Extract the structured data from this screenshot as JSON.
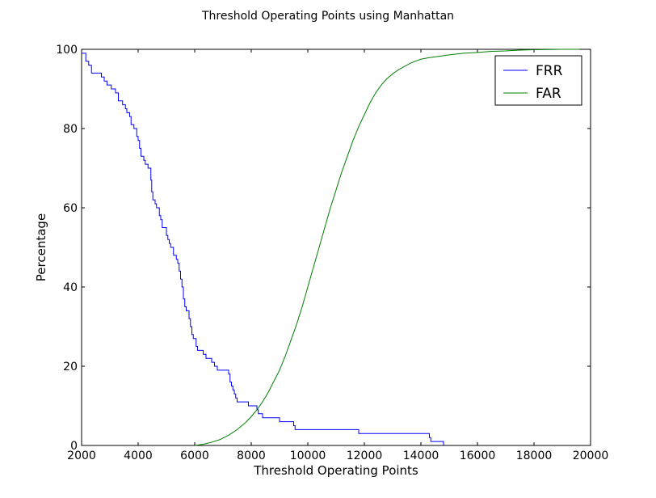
{
  "chart_data": {
    "type": "line",
    "title": "Threshold Operating Points using Manhattan",
    "xlabel": "Threshold Operating Points",
    "ylabel": "Percentage",
    "xlim": [
      2000,
      20000
    ],
    "ylim": [
      0,
      100
    ],
    "xticks": [
      2000,
      4000,
      6000,
      8000,
      10000,
      12000,
      14000,
      16000,
      18000,
      20000
    ],
    "yticks": [
      0,
      20,
      40,
      60,
      80,
      100
    ],
    "grid": false,
    "legend": "top-right",
    "series": [
      {
        "name": "FRR",
        "color": "#0000ff",
        "step": true,
        "x": [
          2000,
          2150,
          2250,
          2350,
          2700,
          2800,
          2900,
          3050,
          3200,
          3300,
          3450,
          3550,
          3600,
          3700,
          3750,
          3850,
          3950,
          4000,
          4050,
          4100,
          4200,
          4250,
          4350,
          4450,
          4480,
          4520,
          4600,
          4650,
          4750,
          4800,
          4850,
          5000,
          5050,
          5100,
          5150,
          5250,
          5350,
          5400,
          5450,
          5500,
          5550,
          5600,
          5650,
          5700,
          5800,
          5850,
          5900,
          5950,
          6050,
          6100,
          6300,
          6400,
          6600,
          6700,
          6800,
          6900,
          7200,
          7250,
          7300,
          7350,
          7400,
          7450,
          7500,
          7600,
          7900,
          8200,
          8250,
          8300,
          8400,
          9000,
          9500,
          9550,
          11800,
          14300,
          14350,
          14400,
          14800
        ],
        "values": [
          99,
          97,
          96,
          94,
          93,
          92,
          91,
          90,
          89,
          87,
          86,
          85,
          84,
          83,
          81,
          80,
          78,
          77,
          75,
          73,
          72,
          71,
          70,
          67,
          64,
          62,
          61,
          60,
          58,
          57,
          55,
          53,
          52,
          51,
          50,
          48,
          47,
          46,
          44,
          42,
          40,
          37,
          35,
          34,
          32,
          30,
          28,
          27,
          25,
          24,
          23,
          22,
          21,
          20,
          19,
          19,
          18,
          16,
          15,
          14,
          13,
          12,
          11,
          11,
          10,
          9,
          8,
          8,
          7,
          6,
          5,
          4,
          3,
          2,
          1,
          1,
          0
        ]
      },
      {
        "name": "FAR",
        "color": "#008000",
        "step": false,
        "x": [
          6000,
          6300,
          6600,
          6900,
          7200,
          7500,
          7800,
          8000,
          8200,
          8400,
          8600,
          8800,
          9000,
          9200,
          9400,
          9600,
          9800,
          10000,
          10200,
          10400,
          10600,
          10800,
          11000,
          11200,
          11400,
          11600,
          11800,
          12000,
          12200,
          12400,
          12600,
          12800,
          13000,
          13200,
          13400,
          13600,
          13800,
          14000,
          14300,
          14600,
          15000,
          15500,
          16000,
          16500,
          17000,
          17500,
          18000,
          19000,
          19600
        ],
        "values": [
          0,
          0.3,
          0.8,
          1.5,
          2.6,
          4,
          5.8,
          7.3,
          9,
          11,
          13.4,
          16.2,
          19,
          22.5,
          26.5,
          30.5,
          35,
          40,
          45,
          50,
          55,
          60,
          64.5,
          69,
          73,
          77,
          80.5,
          83.5,
          86.5,
          89,
          91,
          92.6,
          93.8,
          94.8,
          95.6,
          96.4,
          97,
          97.5,
          97.9,
          98.2,
          98.6,
          99,
          99.2,
          99.5,
          99.6,
          99.8,
          99.9,
          100,
          100
        ]
      }
    ]
  }
}
